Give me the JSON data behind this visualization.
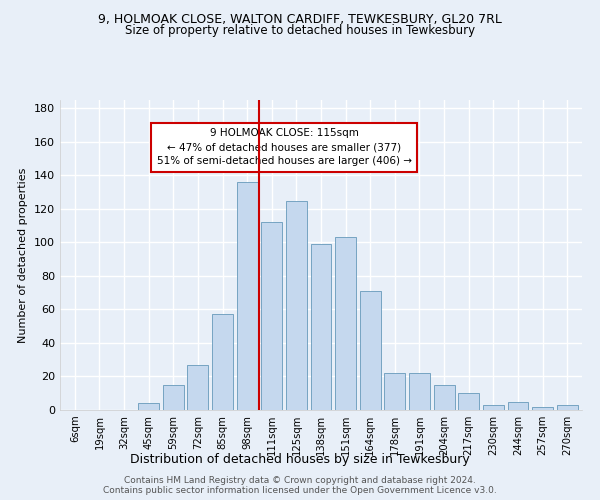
{
  "title_line1": "9, HOLMOAK CLOSE, WALTON CARDIFF, TEWKESBURY, GL20 7RL",
  "title_line2": "Size of property relative to detached houses in Tewkesbury",
  "xlabel": "Distribution of detached houses by size in Tewkesbury",
  "ylabel": "Number of detached properties",
  "categories": [
    "6sqm",
    "19sqm",
    "32sqm",
    "45sqm",
    "59sqm",
    "72sqm",
    "85sqm",
    "98sqm",
    "111sqm",
    "125sqm",
    "138sqm",
    "151sqm",
    "164sqm",
    "178sqm",
    "191sqm",
    "204sqm",
    "217sqm",
    "230sqm",
    "244sqm",
    "257sqm",
    "270sqm"
  ],
  "values": [
    0,
    0,
    0,
    4,
    15,
    27,
    57,
    136,
    112,
    125,
    99,
    103,
    71,
    22,
    22,
    15,
    10,
    3,
    5,
    2,
    3
  ],
  "bar_color": "#c5d8ee",
  "bar_edge_color": "#6699bb",
  "background_color": "#e8eff8",
  "grid_color": "#ffffff",
  "vline_x_index": 8,
  "vline_color": "#cc0000",
  "annotation_text": "9 HOLMOAK CLOSE: 115sqm\n← 47% of detached houses are smaller (377)\n51% of semi-detached houses are larger (406) →",
  "annotation_box_color": "#ffffff",
  "annotation_box_edge": "#cc0000",
  "footer_text": "Contains HM Land Registry data © Crown copyright and database right 2024.\nContains public sector information licensed under the Open Government Licence v3.0.",
  "ylim": [
    0,
    185
  ],
  "yticks": [
    0,
    20,
    40,
    60,
    80,
    100,
    120,
    140,
    160,
    180
  ],
  "title1_fontsize": 9,
  "title2_fontsize": 8.5,
  "annotation_fontsize": 7.5,
  "bar_width": 0.85
}
